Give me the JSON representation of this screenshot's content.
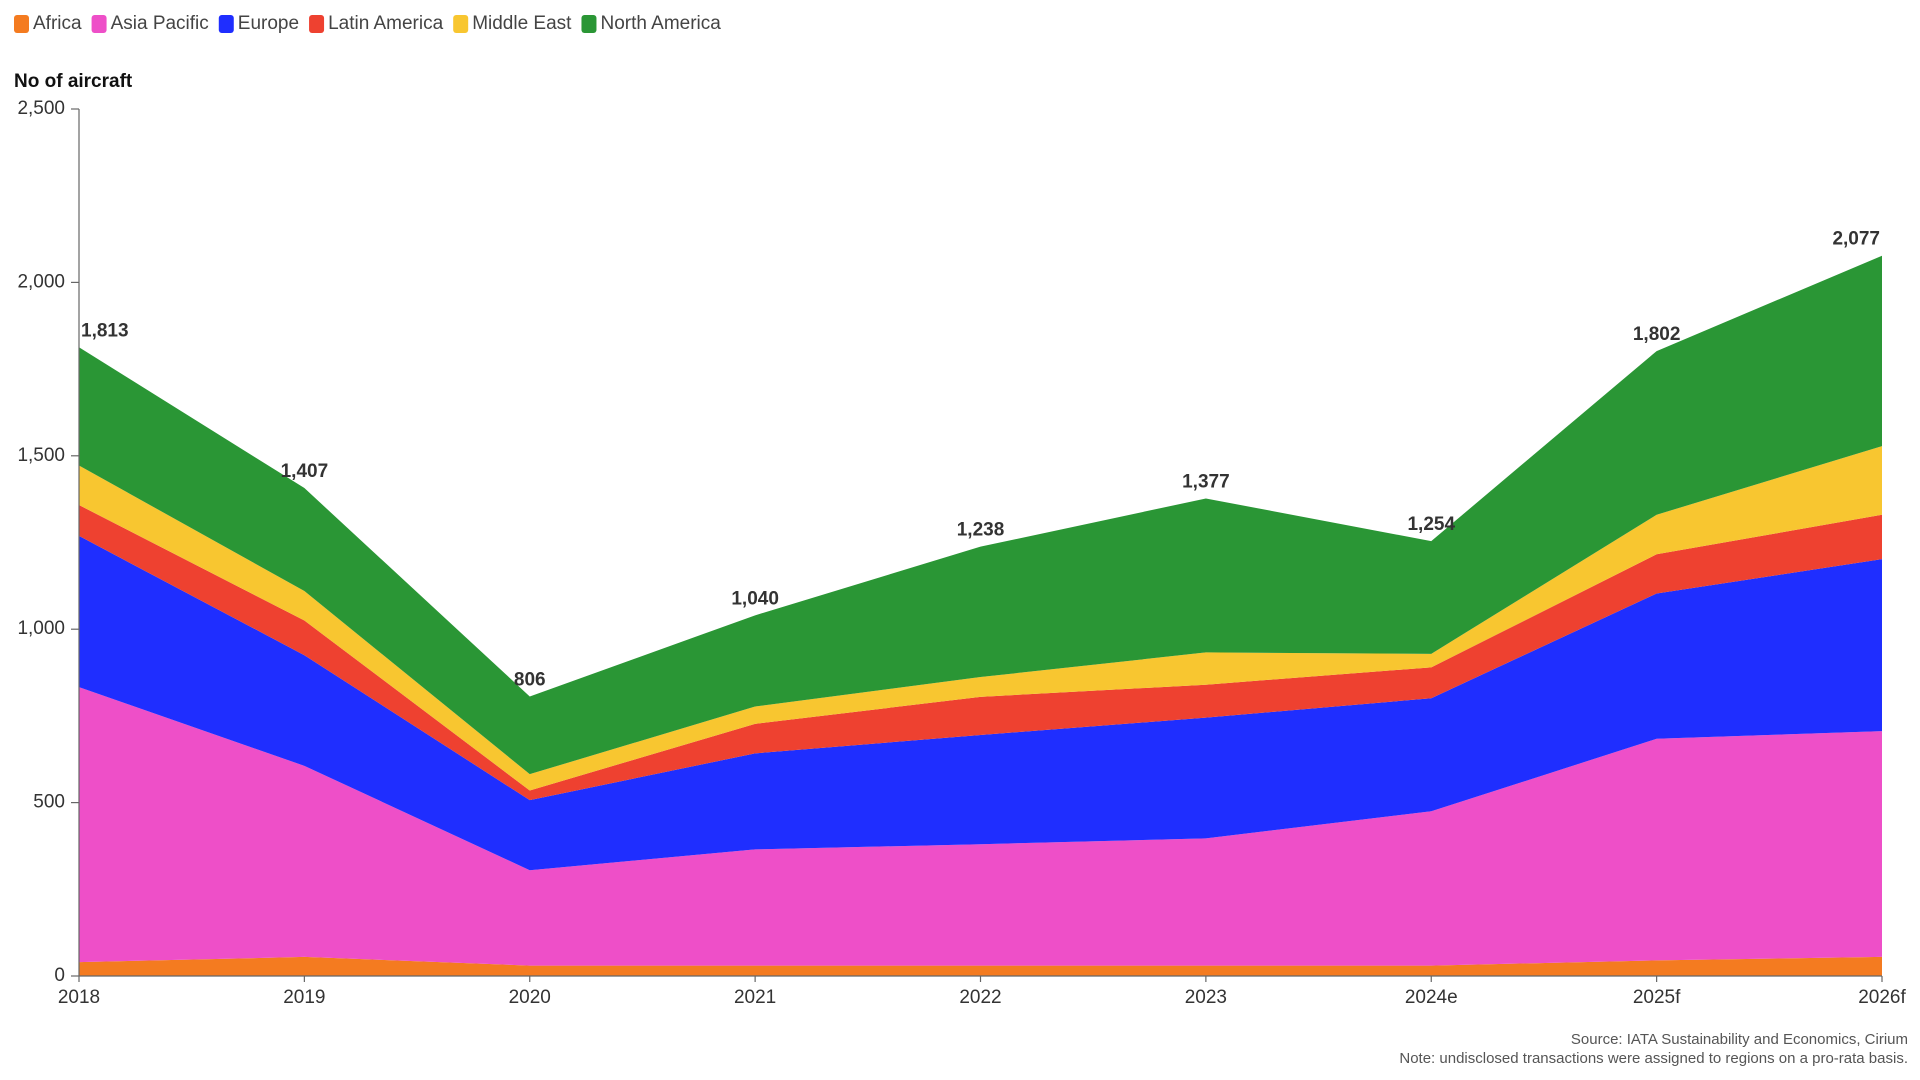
{
  "chart_data": {
    "type": "stacked_area",
    "y_axis_title": "No of aircraft",
    "categories": [
      "2018",
      "2019",
      "2020",
      "2021",
      "2022",
      "2023",
      "2024e",
      "2025f",
      "2026f"
    ],
    "series": [
      {
        "name": "Africa",
        "color": "#f47b20",
        "values": [
          40,
          55,
          30,
          30,
          30,
          30,
          30,
          45,
          55
        ]
      },
      {
        "name": "Asia Pacific",
        "color": "#ee4fc8",
        "values": [
          793,
          551,
          275,
          335,
          350,
          367,
          445,
          639,
          651
        ]
      },
      {
        "name": "Europe",
        "color": "#1f2eff",
        "values": [
          436,
          319,
          202,
          277,
          315,
          348,
          326,
          419,
          496
        ]
      },
      {
        "name": "Latin America",
        "color": "#ee4130",
        "values": [
          89,
          100,
          28,
          85,
          110,
          95,
          89,
          113,
          128
        ]
      },
      {
        "name": "Middle East",
        "color": "#f8c630",
        "values": [
          114,
          85,
          47,
          50,
          57,
          93,
          39,
          114,
          198
        ]
      },
      {
        "name": "North America",
        "color": "#2a9635",
        "values": [
          341,
          297,
          224,
          263,
          376,
          444,
          325,
          472,
          549
        ]
      }
    ],
    "totals": {
      "values": [
        1813,
        1407,
        806,
        1040,
        1238,
        1377,
        1254,
        1802,
        2077
      ],
      "value_labels": [
        "1,813",
        "1,407",
        "806",
        "1,040",
        "1,238",
        "1,377",
        "1,254",
        "1,802",
        "2,077"
      ]
    },
    "ylim": [
      0,
      2500
    ],
    "yticks": [
      0,
      500,
      {
        "value": 1000,
        "label": "1,000"
      },
      {
        "value": 1500,
        "label": "1,500"
      },
      {
        "value": 2000,
        "label": "2,000"
      },
      {
        "value": 2500,
        "label": "2,500"
      }
    ],
    "grid": false,
    "legend_position": "top-left",
    "source": "Source: IATA Sustainability and Economics, Cirium",
    "note": "Note: undisclosed transactions were assigned to regions on a pro-rata basis."
  }
}
